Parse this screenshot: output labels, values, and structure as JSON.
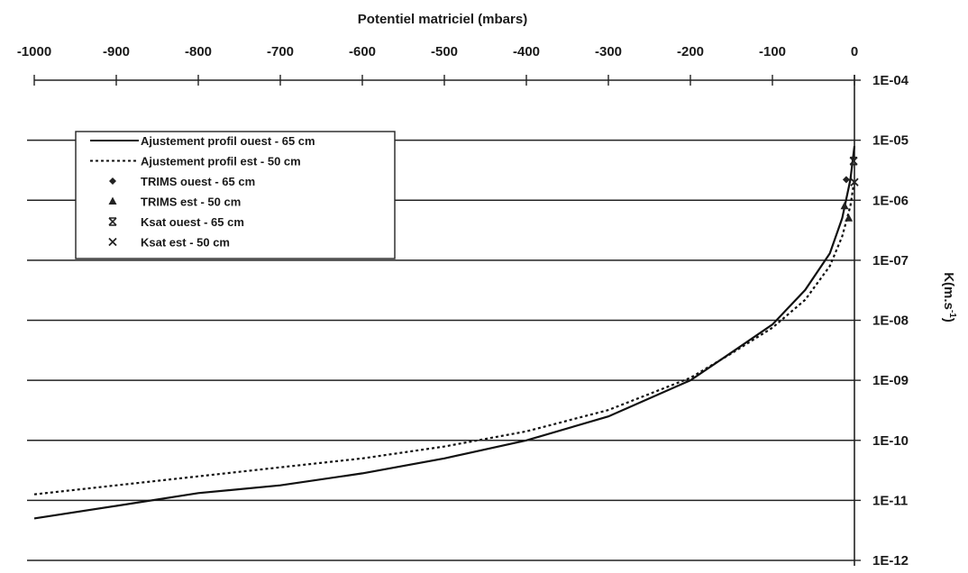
{
  "chart_data": {
    "type": "line",
    "xlabel": "Potentiel matriciel (mbars)",
    "ylabel": "K(m.s-1)",
    "ylabel_base": "K(m.s",
    "ylabel_sup": "-1",
    "ylabel_tail": ")",
    "xlim": [
      -1000,
      0
    ],
    "ylim": [
      1e-12,
      0.0001
    ],
    "y_scale": "log",
    "x_ticks": [
      "-1000",
      "-900",
      "-800",
      "-700",
      "-600",
      "-500",
      "-400",
      "-300",
      "-200",
      "-100",
      "0"
    ],
    "y_ticks": [
      "1E-04",
      "1E-05",
      "1E-06",
      "1E-07",
      "1E-08",
      "1E-09",
      "1E-10",
      "1E-11",
      "1E-12"
    ],
    "grid": "horizontal",
    "legend_position": "top-left",
    "series": [
      {
        "name": "Ajustement profil ouest - 65 cm",
        "style": "solid",
        "x": [
          -1000,
          -900,
          -800,
          -700,
          -600,
          -500,
          -400,
          -300,
          -200,
          -150,
          -100,
          -60,
          -30,
          -15,
          -5,
          0
        ],
        "y": [
          5e-12,
          8.1e-12,
          1.32e-11,
          1.78e-11,
          2.82e-11,
          5e-11,
          1e-10,
          2.5e-10,
          1e-09,
          2.9e-09,
          8.5e-09,
          3.2e-08,
          1.3e-07,
          5e-07,
          2.2e-06,
          8e-06
        ]
      },
      {
        "name": "Ajustement profil est - 50 cm",
        "style": "dotted",
        "x": [
          -1000,
          -900,
          -800,
          -700,
          -600,
          -500,
          -400,
          -300,
          -200,
          -150,
          -100,
          -60,
          -30,
          -15,
          -5,
          0
        ],
        "y": [
          1.26e-11,
          1.78e-11,
          2.51e-11,
          3.55e-11,
          5e-11,
          7.9e-11,
          1.41e-10,
          3.2e-10,
          1.1e-09,
          2.8e-09,
          7.5e-09,
          2.2e-08,
          8e-08,
          2.5e-07,
          8e-07,
          2.2e-06
        ]
      },
      {
        "name": "TRIMS ouest - 65 cm",
        "style": "marker",
        "marker": "diamond",
        "x": [
          -10
        ],
        "y": [
          2.2e-06
        ]
      },
      {
        "name": "TRIMS est - 50 cm",
        "style": "marker",
        "marker": "triangle",
        "x": [
          -12,
          -7
        ],
        "y": [
          8e-07,
          5e-07
        ]
      },
      {
        "name": "Ksat ouest - 65 cm",
        "style": "marker",
        "marker": "x-bar",
        "x": [
          -1
        ],
        "y": [
          4.5e-06
        ]
      },
      {
        "name": "Ksat est - 50 cm",
        "style": "marker",
        "marker": "x",
        "x": [
          0
        ],
        "y": [
          2e-06
        ]
      }
    ]
  }
}
